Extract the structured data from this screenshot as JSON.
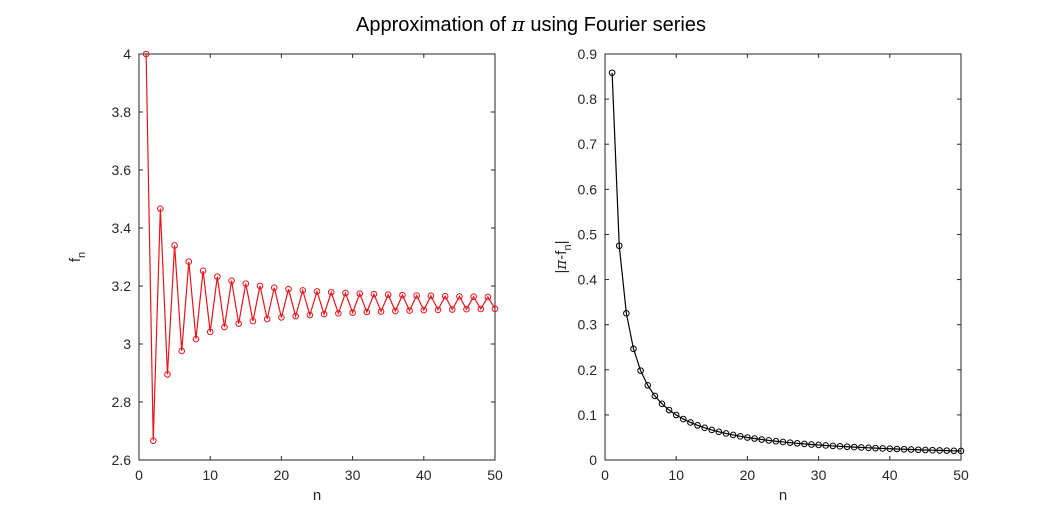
{
  "figure": {
    "title_prefix": "Approximation of ",
    "title_symbol": "π",
    "title_suffix": " using Fourier series"
  },
  "chart_data": [
    {
      "type": "line",
      "xlabel": "n",
      "ylabel_main": "f",
      "ylabel_sub": "n",
      "xlim": [
        0,
        50
      ],
      "ylim": [
        2.6,
        4
      ],
      "xticks": [
        "0",
        "10",
        "20",
        "30",
        "40",
        "50"
      ],
      "yticks": [
        "2.6",
        "2.8",
        "3",
        "3.2",
        "3.4",
        "3.6",
        "3.8",
        "4"
      ],
      "xtick_values": [
        0,
        10,
        20,
        30,
        40,
        50
      ],
      "ytick_values": [
        2.6,
        2.8,
        3.0,
        3.2,
        3.4,
        3.6,
        3.8,
        4.0
      ],
      "marker": "circle",
      "color": "#e8141c",
      "series": [
        {
          "x": [
            1,
            2,
            3,
            4,
            5,
            6,
            7,
            8,
            9,
            10,
            11,
            12,
            13,
            14,
            15,
            16,
            17,
            18,
            19,
            20,
            21,
            22,
            23,
            24,
            25,
            26,
            27,
            28,
            29,
            30,
            31,
            32,
            33,
            34,
            35,
            36,
            37,
            38,
            39,
            40,
            41,
            42,
            43,
            44,
            45,
            46,
            47,
            48,
            49,
            50
          ],
          "values": [
            4.0,
            2.6667,
            3.4667,
            2.8952,
            3.3397,
            2.976,
            3.2837,
            3.0171,
            3.2524,
            3.0418,
            3.2323,
            3.0584,
            3.2184,
            3.0703,
            3.2082,
            3.0792,
            3.2003,
            3.0861,
            3.1941,
            3.0916,
            3.189,
            3.0961,
            3.1848,
            3.0999,
            3.1813,
            3.1031,
            3.1784,
            3.1058,
            3.1758,
            3.1082,
            3.1737,
            3.1103,
            3.1718,
            3.1121,
            3.1701,
            3.1137,
            3.1686,
            3.1152,
            3.1672,
            3.1166,
            3.166,
            3.1178,
            3.1649,
            3.1189,
            3.1639,
            3.1199,
            3.163,
            3.1208,
            3.1622,
            3.1216
          ]
        }
      ]
    },
    {
      "type": "line",
      "xlabel": "n",
      "ylabel_prefix": "|",
      "ylabel_symbol": "π",
      "ylabel_mid": "-f",
      "ylabel_sub": "n",
      "ylabel_suffix": "|",
      "xlim": [
        0,
        50
      ],
      "ylim": [
        0,
        0.9
      ],
      "xticks": [
        "0",
        "10",
        "20",
        "30",
        "40",
        "50"
      ],
      "yticks": [
        "0",
        "0.1",
        "0.2",
        "0.3",
        "0.4",
        "0.5",
        "0.6",
        "0.7",
        "0.8",
        "0.9"
      ],
      "xtick_values": [
        0,
        10,
        20,
        30,
        40,
        50
      ],
      "ytick_values": [
        0,
        0.1,
        0.2,
        0.3,
        0.4,
        0.5,
        0.6,
        0.7,
        0.8,
        0.9
      ],
      "marker": "circle",
      "color": "#000000",
      "series": [
        {
          "x": [
            1,
            2,
            3,
            4,
            5,
            6,
            7,
            8,
            9,
            10,
            11,
            12,
            13,
            14,
            15,
            16,
            17,
            18,
            19,
            20,
            21,
            22,
            23,
            24,
            25,
            26,
            27,
            28,
            29,
            30,
            31,
            32,
            33,
            34,
            35,
            36,
            37,
            38,
            39,
            40,
            41,
            42,
            43,
            44,
            45,
            46,
            47,
            48,
            49,
            50
          ],
          "values": [
            0.8584,
            0.4749,
            0.3251,
            0.2464,
            0.1981,
            0.1656,
            0.1421,
            0.1245,
            0.1108,
            0.0998,
            0.0907,
            0.0832,
            0.0768,
            0.0713,
            0.0666,
            0.0624,
            0.0588,
            0.0555,
            0.0525,
            0.0499,
            0.0476,
            0.0454,
            0.0434,
            0.0416,
            0.04,
            0.0384,
            0.037,
            0.0357,
            0.0344,
            0.0333,
            0.0322,
            0.0312,
            0.0303,
            0.0294,
            0.0286,
            0.0278,
            0.027,
            0.0263,
            0.0256,
            0.025,
            0.0244,
            0.0238,
            0.0232,
            0.0227,
            0.0222,
            0.0217,
            0.0213,
            0.0208,
            0.0204,
            0.02
          ]
        }
      ]
    }
  ]
}
